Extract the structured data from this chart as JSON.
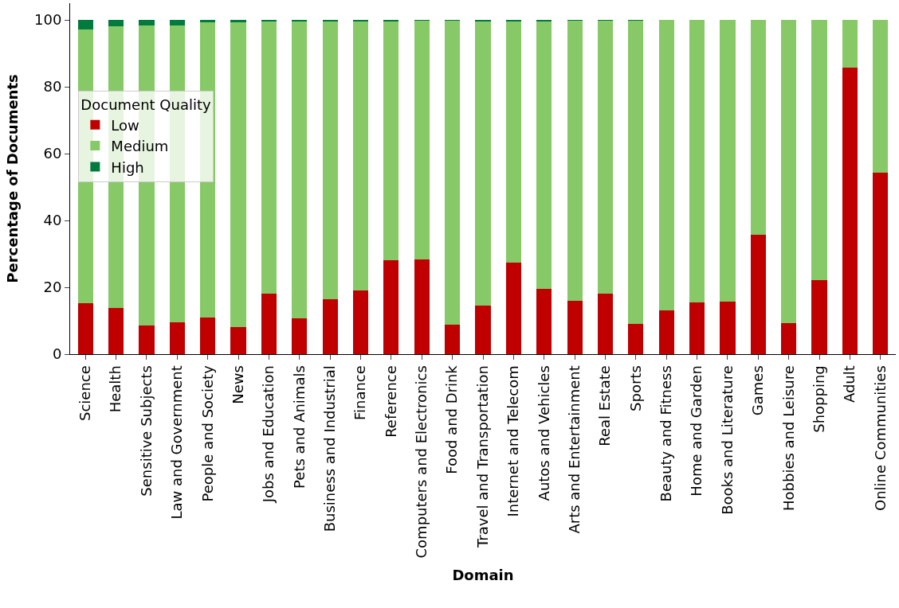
{
  "chart_data": {
    "type": "bar",
    "stacked": true,
    "xlabel": "Domain",
    "ylabel": "Percentage of Documents",
    "legend_title": "Document Quality",
    "legend": "left",
    "grid": false,
    "categories": [
      "Science",
      "Health",
      "Sensitive Subjects",
      "Law and Government",
      "People and Society",
      "News",
      "Jobs and Education",
      "Pets and Animals",
      "Business and Industrial",
      "Finance",
      "Reference",
      "Computers and Electronics",
      "Food and Drink",
      "Travel and Transportation",
      "Internet and Telecom",
      "Autos and Vehicles",
      "Arts and Entertainment",
      "Real Estate",
      "Sports",
      "Beauty and Fitness",
      "Home and Garden",
      "Books and Literature",
      "Games",
      "Hobbies and Leisure",
      "Shopping",
      "Adult",
      "Online Communities"
    ],
    "ylim": [
      0,
      105
    ],
    "yticks": [
      0,
      20,
      40,
      60,
      80,
      100
    ],
    "series": [
      {
        "name": "Low",
        "color": "#c00000",
        "values": [
          15.3,
          13.8,
          8.6,
          9.5,
          11.0,
          8.2,
          18.0,
          10.8,
          16.4,
          19.0,
          28.0,
          28.3,
          8.9,
          14.6,
          27.3,
          19.5,
          16.0,
          18.0,
          9.1,
          13.2,
          15.4,
          15.8,
          35.6,
          9.3,
          22.2,
          85.6,
          54.2
        ]
      },
      {
        "name": "Medium",
        "color": "#86c966",
        "values": [
          81.8,
          84.3,
          89.8,
          88.9,
          88.2,
          91.0,
          81.5,
          88.7,
          83.1,
          80.5,
          71.7,
          71.6,
          91.0,
          85.1,
          72.4,
          80.2,
          83.8,
          81.8,
          90.7,
          86.8,
          84.6,
          84.2,
          64.4,
          90.7,
          77.8,
          14.4,
          45.8
        ]
      },
      {
        "name": "High",
        "color": "#007a3d",
        "values": [
          2.9,
          1.9,
          1.6,
          1.6,
          0.8,
          0.8,
          0.5,
          0.5,
          0.5,
          0.5,
          0.3,
          0.1,
          0.1,
          0.3,
          0.3,
          0.3,
          0.2,
          0.2,
          0.2,
          0,
          0,
          0,
          0,
          0,
          0,
          0,
          0
        ]
      }
    ]
  }
}
